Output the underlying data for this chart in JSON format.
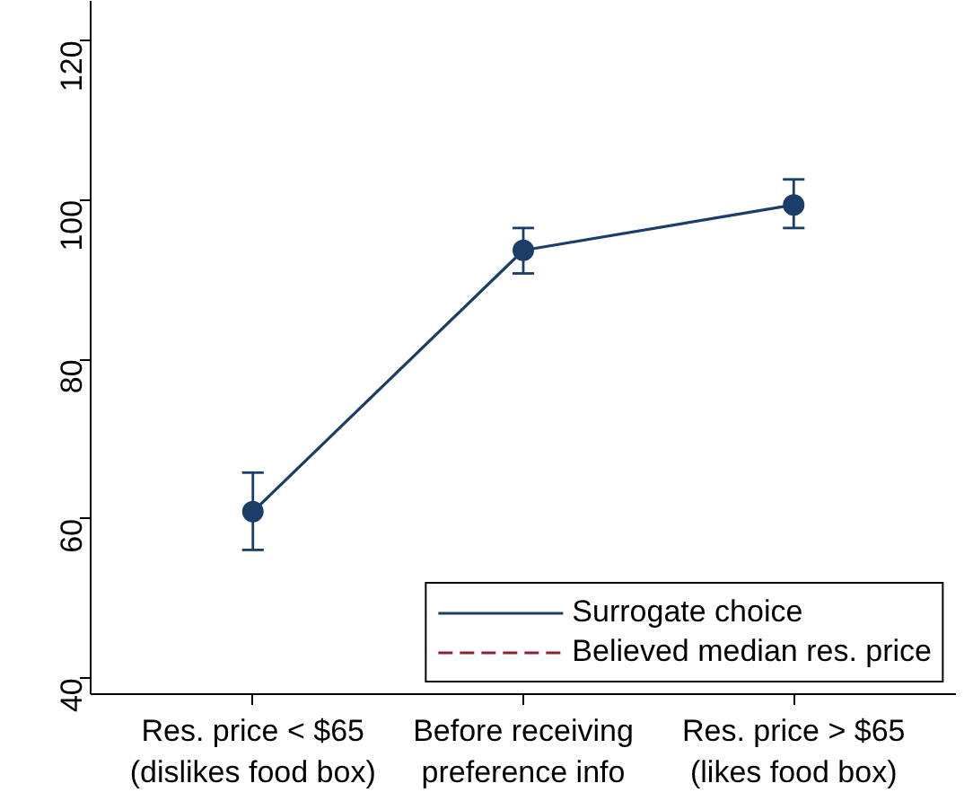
{
  "chart_data": {
    "type": "line",
    "categories": [
      "Res. price < $65\n(dislikes food box)",
      "Before receiving\npreference info",
      "Res. price > $65\n(likes food box)"
    ],
    "series": [
      {
        "name": "Surrogate choice",
        "color": "#1a3e67",
        "values": [
          60.9,
          93.7,
          99.4
        ],
        "errors": [
          [
            56.1,
            65.8
          ],
          [
            90.8,
            96.5
          ],
          [
            96.5,
            102.6
          ]
        ],
        "marker": "circle",
        "line_style": "solid"
      },
      {
        "name": "Believed median res. price",
        "color": "#8b2332",
        "values": [
          null,
          null,
          null
        ],
        "line_style": "dashed",
        "marker": "none"
      }
    ],
    "ylim": [
      38,
      125
    ],
    "yticks": [
      40,
      60,
      80,
      100,
      120
    ],
    "grid": false,
    "legend": "bottom right"
  }
}
